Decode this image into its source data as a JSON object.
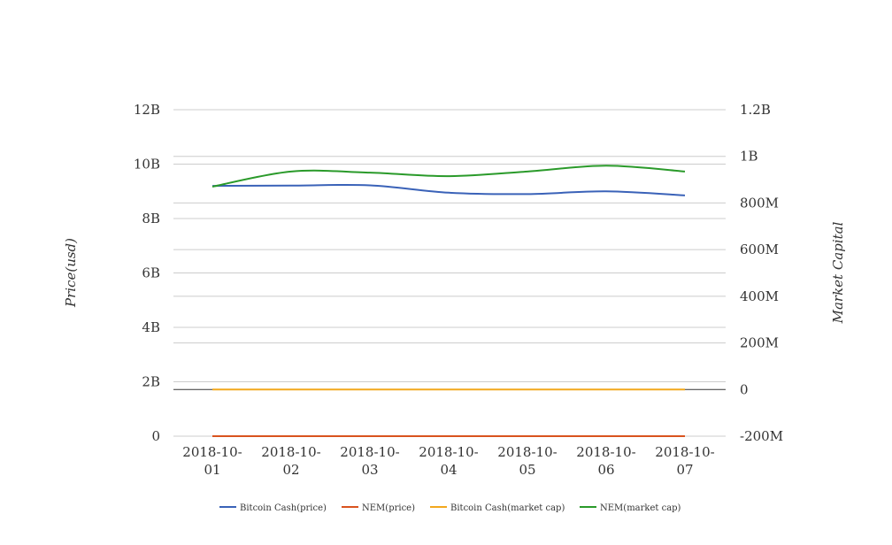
{
  "chart_data": {
    "type": "line",
    "smooth": true,
    "categories": [
      [
        "2018-10-",
        "01"
      ],
      [
        "2018-10-",
        "02"
      ],
      [
        "2018-10-",
        "03"
      ],
      [
        "2018-10-",
        "04"
      ],
      [
        "2018-10-",
        "05"
      ],
      [
        "2018-10-",
        "06"
      ],
      [
        "2018-10-",
        "07"
      ]
    ],
    "y_left": {
      "label": "Price(usd)",
      "ticks": [
        "0",
        "2B",
        "4B",
        "6B",
        "8B",
        "10B",
        "12B"
      ],
      "range": [
        0,
        12000000000
      ]
    },
    "y_right": {
      "label": "Market Capital",
      "ticks": [
        "-200M",
        "0",
        "200M",
        "400M",
        "600M",
        "800M",
        "1B",
        "1.2B"
      ],
      "range": [
        -200000000,
        1200000000
      ]
    },
    "grid": true,
    "legend_position": "bottom",
    "series": [
      {
        "name": "Bitcoin Cash(price)",
        "axis": "left",
        "color": "#3a62b8",
        "values": [
          9200000000,
          9210000000,
          9220000000,
          8950000000,
          8900000000,
          9000000000,
          8850000000
        ]
      },
      {
        "name": "NEM(price)",
        "axis": "left",
        "color": "#d9531e",
        "values": [
          0.097,
          0.098,
          0.096,
          0.095,
          0.094,
          0.095,
          0.093
        ]
      },
      {
        "name": "Bitcoin Cash(market cap)",
        "axis": "right",
        "color": "#f2a81d",
        "values": [
          510,
          515,
          518,
          520,
          519,
          517,
          515
        ]
      },
      {
        "name": "NEM(market cap)",
        "axis": "right",
        "color": "#2a9a2a",
        "values": [
          870000000,
          935000000,
          930000000,
          915000000,
          935000000,
          960000000,
          935000000
        ]
      }
    ]
  }
}
